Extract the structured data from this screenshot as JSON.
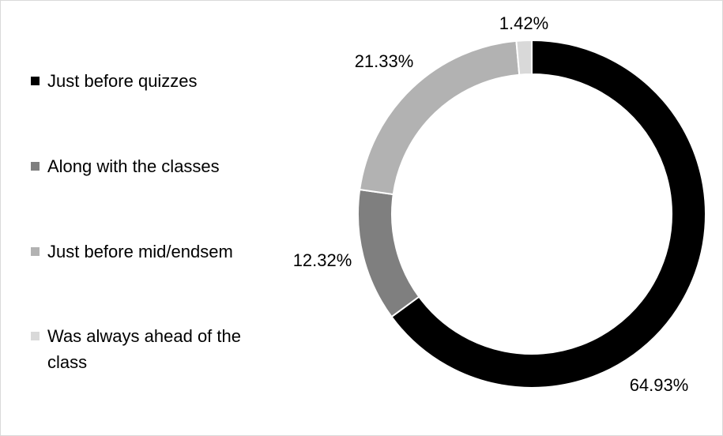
{
  "chart_data": {
    "type": "pie",
    "donut": true,
    "categories": [
      "Just before quizzes",
      "Along with the classes",
      "Just before mid/endsem",
      "Was always ahead of the class"
    ],
    "values": [
      64.93,
      12.32,
      21.33,
      1.42
    ],
    "value_labels": [
      "64.93%",
      "12.32%",
      "21.33%",
      "1.42%"
    ],
    "colors": [
      "#000000",
      "#7f7f7f",
      "#b2b2b2",
      "#d9d9d9"
    ],
    "start_angle_deg": 0,
    "direction": "clockwise",
    "legend_position": "left",
    "title": ""
  }
}
